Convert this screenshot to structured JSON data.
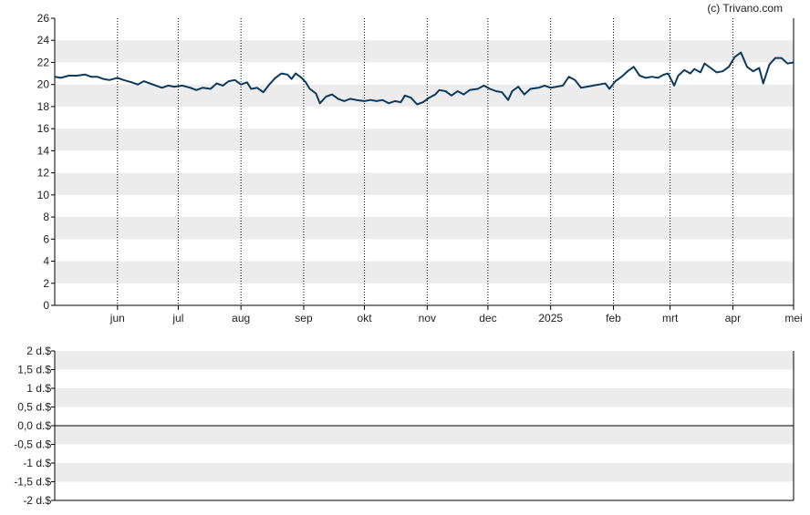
{
  "watermark": "(c) Trivano.com",
  "colors": {
    "line": "#0d3a5c",
    "band": "#ececec",
    "axis": "#000000",
    "text": "#222222"
  },
  "chart_data": [
    {
      "type": "line",
      "title": "",
      "xlabel": "",
      "ylabel": "",
      "ylim": [
        0,
        26
      ],
      "yticks": [
        0,
        2,
        4,
        6,
        8,
        10,
        12,
        14,
        16,
        18,
        20,
        22,
        24,
        26
      ],
      "grid": "alternating horizontal bands, dotted vertical lines at month ticks",
      "xlim": [
        "2024-05-01",
        "2025-05-01"
      ],
      "xticks": [
        {
          "label": "jun",
          "date": "2024-06-01"
        },
        {
          "label": "jul",
          "date": "2024-07-01"
        },
        {
          "label": "aug",
          "date": "2024-08-01"
        },
        {
          "label": "sep",
          "date": "2024-09-01"
        },
        {
          "label": "okt",
          "date": "2024-10-01"
        },
        {
          "label": "nov",
          "date": "2024-11-01"
        },
        {
          "label": "dec",
          "date": "2024-12-01"
        },
        {
          "label": "2025",
          "date": "2025-01-01"
        },
        {
          "label": "feb",
          "date": "2025-02-01"
        },
        {
          "label": "mrt",
          "date": "2025-03-01"
        },
        {
          "label": "apr",
          "date": "2025-04-01"
        },
        {
          "label": "mei",
          "date": "2025-05-01"
        }
      ],
      "series": [
        {
          "name": "",
          "points": [
            [
              "2024-05-01",
              20.7
            ],
            [
              "2024-05-04",
              20.6
            ],
            [
              "2024-05-08",
              20.8
            ],
            [
              "2024-05-12",
              20.8
            ],
            [
              "2024-05-16",
              20.9
            ],
            [
              "2024-05-19",
              20.7
            ],
            [
              "2024-05-22",
              20.7
            ],
            [
              "2024-05-25",
              20.5
            ],
            [
              "2024-05-28",
              20.4
            ],
            [
              "2024-06-01",
              20.6
            ],
            [
              "2024-06-04",
              20.4
            ],
            [
              "2024-06-08",
              20.2
            ],
            [
              "2024-06-11",
              20.0
            ],
            [
              "2024-06-14",
              20.3
            ],
            [
              "2024-06-17",
              20.1
            ],
            [
              "2024-06-20",
              19.9
            ],
            [
              "2024-06-23",
              19.7
            ],
            [
              "2024-06-26",
              19.9
            ],
            [
              "2024-06-29",
              19.8
            ],
            [
              "2024-07-03",
              19.9
            ],
            [
              "2024-07-07",
              19.7
            ],
            [
              "2024-07-10",
              19.5
            ],
            [
              "2024-07-13",
              19.7
            ],
            [
              "2024-07-17",
              19.6
            ],
            [
              "2024-07-20",
              20.1
            ],
            [
              "2024-07-23",
              19.9
            ],
            [
              "2024-07-26",
              20.3
            ],
            [
              "2024-07-29",
              20.4
            ],
            [
              "2024-08-01",
              20.0
            ],
            [
              "2024-08-04",
              20.2
            ],
            [
              "2024-08-06",
              19.6
            ],
            [
              "2024-08-09",
              19.7
            ],
            [
              "2024-08-12",
              19.3
            ],
            [
              "2024-08-15",
              20.0
            ],
            [
              "2024-08-18",
              20.6
            ],
            [
              "2024-08-21",
              21.0
            ],
            [
              "2024-08-24",
              20.9
            ],
            [
              "2024-08-26",
              20.5
            ],
            [
              "2024-08-28",
              21.0
            ],
            [
              "2024-08-31",
              20.6
            ],
            [
              "2024-09-02",
              20.2
            ],
            [
              "2024-09-04",
              19.6
            ],
            [
              "2024-09-07",
              19.2
            ],
            [
              "2024-09-09",
              18.3
            ],
            [
              "2024-09-12",
              18.9
            ],
            [
              "2024-09-15",
              19.1
            ],
            [
              "2024-09-18",
              18.7
            ],
            [
              "2024-09-21",
              18.5
            ],
            [
              "2024-09-24",
              18.7
            ],
            [
              "2024-09-27",
              18.6
            ],
            [
              "2024-10-01",
              18.5
            ],
            [
              "2024-10-04",
              18.6
            ],
            [
              "2024-10-07",
              18.5
            ],
            [
              "2024-10-10",
              18.6
            ],
            [
              "2024-10-13",
              18.3
            ],
            [
              "2024-10-16",
              18.5
            ],
            [
              "2024-10-19",
              18.4
            ],
            [
              "2024-10-21",
              19.0
            ],
            [
              "2024-10-24",
              18.8
            ],
            [
              "2024-10-27",
              18.2
            ],
            [
              "2024-10-30",
              18.4
            ],
            [
              "2024-11-02",
              18.8
            ],
            [
              "2024-11-05",
              19.1
            ],
            [
              "2024-11-07",
              19.5
            ],
            [
              "2024-11-10",
              19.4
            ],
            [
              "2024-11-13",
              19.0
            ],
            [
              "2024-11-16",
              19.4
            ],
            [
              "2024-11-19",
              19.1
            ],
            [
              "2024-11-22",
              19.5
            ],
            [
              "2024-11-26",
              19.6
            ],
            [
              "2024-11-29",
              19.9
            ],
            [
              "2024-12-02",
              19.6
            ],
            [
              "2024-12-05",
              19.4
            ],
            [
              "2024-12-08",
              19.3
            ],
            [
              "2024-12-11",
              18.6
            ],
            [
              "2024-12-13",
              19.4
            ],
            [
              "2024-12-16",
              19.8
            ],
            [
              "2024-12-19",
              19.1
            ],
            [
              "2024-12-22",
              19.6
            ],
            [
              "2024-12-26",
              19.7
            ],
            [
              "2024-12-29",
              19.9
            ],
            [
              "2025-01-01",
              19.7
            ],
            [
              "2025-01-04",
              19.8
            ],
            [
              "2025-01-07",
              19.9
            ],
            [
              "2025-01-10",
              20.7
            ],
            [
              "2025-01-13",
              20.4
            ],
            [
              "2025-01-16",
              19.7
            ],
            [
              "2025-01-19",
              19.8
            ],
            [
              "2025-01-22",
              19.9
            ],
            [
              "2025-01-25",
              20.0
            ],
            [
              "2025-01-28",
              20.1
            ],
            [
              "2025-01-30",
              19.6
            ],
            [
              "2025-02-02",
              20.3
            ],
            [
              "2025-02-05",
              20.7
            ],
            [
              "2025-02-08",
              21.2
            ],
            [
              "2025-02-11",
              21.6
            ],
            [
              "2025-02-14",
              20.8
            ],
            [
              "2025-02-17",
              20.6
            ],
            [
              "2025-02-20",
              20.7
            ],
            [
              "2025-02-23",
              20.6
            ],
            [
              "2025-02-26",
              20.9
            ],
            [
              "2025-02-28",
              21.0
            ],
            [
              "2025-03-03",
              19.9
            ],
            [
              "2025-03-05",
              20.8
            ],
            [
              "2025-03-08",
              21.3
            ],
            [
              "2025-03-11",
              21.0
            ],
            [
              "2025-03-13",
              21.4
            ],
            [
              "2025-03-16",
              21.1
            ],
            [
              "2025-03-18",
              21.9
            ],
            [
              "2025-03-21",
              21.5
            ],
            [
              "2025-03-24",
              21.1
            ],
            [
              "2025-03-27",
              21.2
            ],
            [
              "2025-03-30",
              21.6
            ],
            [
              "2025-04-02",
              22.5
            ],
            [
              "2025-04-05",
              22.9
            ],
            [
              "2025-04-08",
              21.6
            ],
            [
              "2025-04-11",
              21.2
            ],
            [
              "2025-04-14",
              21.5
            ],
            [
              "2025-04-16",
              20.1
            ],
            [
              "2025-04-19",
              21.8
            ],
            [
              "2025-04-22",
              22.4
            ],
            [
              "2025-04-25",
              22.4
            ],
            [
              "2025-04-28",
              21.9
            ],
            [
              "2025-05-01",
              22.0
            ]
          ]
        }
      ]
    },
    {
      "type": "line",
      "title": "",
      "xlabel": "",
      "ylabel": "",
      "ylim": [
        -2,
        2
      ],
      "yticks": [
        {
          "value": 2,
          "label": "2 d.$"
        },
        {
          "value": 1.5,
          "label": "1,5 d.$"
        },
        {
          "value": 1,
          "label": "1 d.$"
        },
        {
          "value": 0.5,
          "label": "0,5 d.$"
        },
        {
          "value": 0,
          "label": "0,0 d.$"
        },
        {
          "value": -0.5,
          "label": "-0,5 d.$"
        },
        {
          "value": -1,
          "label": "-1 d.$"
        },
        {
          "value": -1.5,
          "label": "-1,5 d.$"
        },
        {
          "value": -2,
          "label": "-2 d.$"
        }
      ],
      "grid": "alternating horizontal bands, solid line at zero",
      "series": []
    }
  ]
}
